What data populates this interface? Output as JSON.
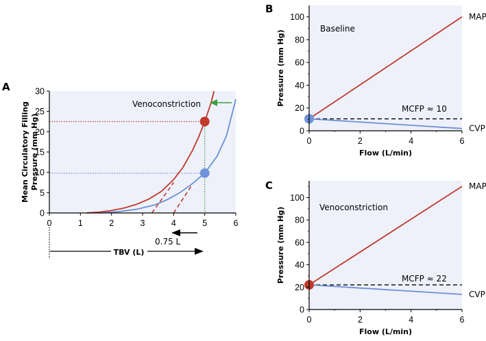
{
  "colors": {
    "red": "#c0392b",
    "blue": "#6b8fd4",
    "red_dot": "#c0392b",
    "blue_dot": "#6f93d8",
    "green": "#3aa040",
    "bg": "#eef1fa",
    "black": "#000000"
  },
  "chart_data": [
    {
      "panel": "A",
      "type": "line",
      "ylabel_line1": "Mean Circulatory Filling",
      "ylabel_line2": "Pressure (mm Hg)",
      "xlim": [
        0,
        6
      ],
      "ylim": [
        0,
        30
      ],
      "xticks": [
        0,
        1,
        2,
        3,
        4,
        5,
        6
      ],
      "yticks": [
        0,
        5,
        10,
        15,
        20,
        25,
        30
      ],
      "series": [
        {
          "name": "Venoconstriction",
          "color": "red",
          "x": [
            1.2,
            1.6,
            2.0,
            2.4,
            2.8,
            3.2,
            3.6,
            4.0,
            4.3,
            4.6,
            4.8,
            5.0,
            5.2,
            5.3
          ],
          "values": [
            0,
            0.2,
            0.6,
            1.2,
            2.1,
            3.4,
            5.3,
            8.2,
            11.2,
            15.3,
            18.6,
            22.5,
            27.0,
            30.0
          ]
        },
        {
          "name": "Baseline",
          "color": "blue",
          "x": [
            1.6,
            2.2,
            2.8,
            3.4,
            3.8,
            4.2,
            4.6,
            5.0,
            5.4,
            5.7,
            6.0
          ],
          "values": [
            0,
            0.3,
            0.9,
            2.0,
            3.3,
            5.0,
            7.2,
            9.8,
            14.0,
            19.0,
            28.0
          ]
        }
      ],
      "points": [
        {
          "x": 5.0,
          "y": 22.5,
          "color": "red_dot"
        },
        {
          "x": 5.0,
          "y": 9.8,
          "color": "blue_dot"
        }
      ],
      "tangents": [
        {
          "color": "red",
          "x": [
            3.3,
            4.0
          ],
          "y": [
            0,
            7.5
          ]
        },
        {
          "color": "red",
          "x": [
            4.0,
            4.6
          ],
          "y": [
            0,
            7.0
          ]
        }
      ],
      "annotation": "Venoconstriction",
      "shift_label": "0.75 L",
      "tbv_label": "TBV (L)"
    },
    {
      "panel": "B",
      "type": "line",
      "ylabel": "Pressure (mm Hg)",
      "xlabel": "Flow (L/min)",
      "xlim": [
        0,
        6
      ],
      "ylim": [
        0,
        110
      ],
      "xticks": [
        0,
        2,
        4,
        6
      ],
      "yticks": [
        0,
        20,
        40,
        60,
        80,
        100
      ],
      "series": [
        {
          "name": "MAP",
          "color": "red",
          "x": [
            0,
            6
          ],
          "values": [
            10.5,
            100
          ]
        },
        {
          "name": "CVP",
          "color": "blue",
          "x": [
            0,
            6
          ],
          "values": [
            10.5,
            2
          ]
        }
      ],
      "mcfp": 10.5,
      "mcfp_label": "MCFP ≈ 10",
      "inner_label": "Baseline",
      "point": {
        "x": 0,
        "y": 10.5,
        "color": "blue_dot"
      }
    },
    {
      "panel": "C",
      "type": "line",
      "ylabel": "Pressure (mm Hg)",
      "xlabel": "Flow (L/min)",
      "xlim": [
        0,
        6
      ],
      "ylim": [
        0,
        115
      ],
      "xticks": [
        0,
        2,
        4,
        6
      ],
      "yticks": [
        0,
        20,
        40,
        60,
        80,
        100
      ],
      "series": [
        {
          "name": "MAP",
          "color": "red",
          "x": [
            0,
            6
          ],
          "values": [
            22,
            110
          ]
        },
        {
          "name": "CVP",
          "color": "blue",
          "x": [
            0,
            6
          ],
          "values": [
            22,
            13.5
          ]
        }
      ],
      "mcfp": 22,
      "mcfp_label": "MCFP ≈ 22",
      "inner_label": "Venoconstriction",
      "point": {
        "x": 0,
        "y": 22,
        "color": "red_dot"
      }
    }
  ]
}
